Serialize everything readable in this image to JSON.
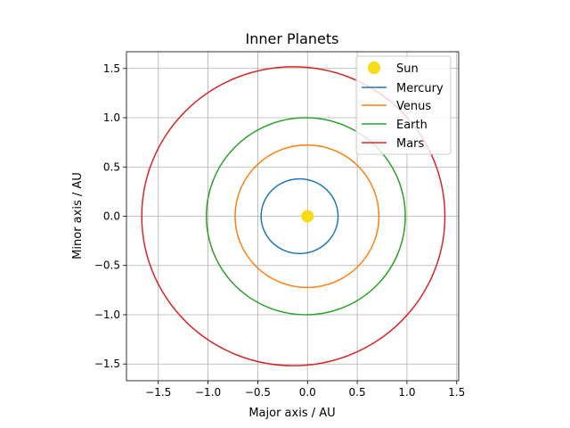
{
  "chart_data": {
    "type": "line",
    "title": "Inner Planets",
    "xlabel": "Major axis / AU",
    "ylabel": "Minor axis / AU",
    "xlim": [
      -1.82,
      1.52
    ],
    "ylim": [
      -1.67,
      1.67
    ],
    "xticks": [
      -1.5,
      -1.0,
      -0.5,
      0.0,
      0.5,
      1.0,
      1.5
    ],
    "yticks": [
      -1.5,
      -1.0,
      -0.5,
      0.0,
      0.5,
      1.0,
      1.5
    ],
    "xtick_labels": [
      "−1.5",
      "−1.0",
      "−0.5",
      "0.0",
      "0.5",
      "1.0",
      "1.5"
    ],
    "ytick_labels": [
      "−1.5",
      "−1.0",
      "−0.5",
      "0.0",
      "0.5",
      "1.0",
      "1.5"
    ],
    "grid": true,
    "legend_placement": "upper right",
    "sun": {
      "name": "Sun",
      "x": 0.0,
      "y": 0.0,
      "color": "#f5dc14"
    },
    "series": [
      {
        "name": "Mercury",
        "semi_major": 0.387,
        "eccentricity": 0.2056,
        "color": "#1f77b4"
      },
      {
        "name": "Venus",
        "semi_major": 0.723,
        "eccentricity": 0.0068,
        "color": "#ff7f0e"
      },
      {
        "name": "Earth",
        "semi_major": 1.0,
        "eccentricity": 0.0167,
        "color": "#2ca02c"
      },
      {
        "name": "Mars",
        "semi_major": 1.524,
        "eccentricity": 0.0934,
        "color": "#d62728"
      }
    ]
  }
}
